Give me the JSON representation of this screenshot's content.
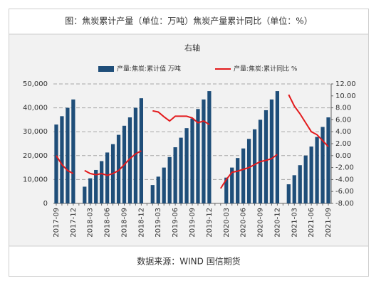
{
  "chart_data": {
    "type": "bar-line",
    "title": "图：焦炭累计产量（单位：万吨）焦炭产量累计同比（单位：%）",
    "subtitle": "右轴",
    "source": "数据来源：WIND 国信期货",
    "categories": [
      "2017-09",
      null,
      null,
      "2017-12",
      null,
      null,
      "2018-03",
      null,
      null,
      "2018-06",
      null,
      null,
      "2018-09",
      null,
      null,
      "2018-12",
      null,
      null,
      "2019-03",
      null,
      null,
      "2019-06",
      null,
      null,
      "2019-09",
      null,
      null,
      "2019-12",
      null,
      null,
      "2020-03",
      null,
      null,
      "2020-06",
      null,
      null,
      "2020-09",
      null,
      null,
      "2020-12",
      null,
      null,
      "2021-03",
      null,
      null,
      "2021-06",
      null,
      null,
      "2021-09"
    ],
    "series": [
      {
        "name": "产量:焦炭:累计值 万吨",
        "color": "#1f4e79",
        "kind": "bar",
        "values": [
          33000,
          36500,
          40000,
          43500,
          null,
          7000,
          10500,
          14000,
          17700,
          21300,
          24800,
          28700,
          32500,
          36000,
          40000,
          44000,
          null,
          7700,
          11200,
          15000,
          19400,
          23500,
          27500,
          31500,
          35500,
          39500,
          43500,
          47000,
          null,
          null,
          10800,
          15000,
          19000,
          23000,
          27000,
          31000,
          35000,
          39000,
          43500,
          47000,
          null,
          8000,
          11800,
          16000,
          20000,
          23800,
          27800,
          32000,
          36000
        ]
      },
      {
        "name": "产量:焦炭:累计同比 %",
        "color": "#e31a1c",
        "kind": "line",
        "axis": "y2",
        "values": [
          0.0,
          -1.5,
          -2.5,
          -3.0,
          null,
          -2.5,
          -3.0,
          -3.2,
          -3.0,
          -3.3,
          -3.0,
          -2.5,
          -1.5,
          -0.5,
          0.3,
          0.8,
          null,
          7.5,
          7.3,
          6.5,
          5.8,
          6.6,
          6.6,
          6.6,
          6.3,
          5.5,
          5.8,
          5.2,
          null,
          -5.5,
          -4.0,
          -2.8,
          -2.6,
          -2.3,
          -2.0,
          -1.5,
          -1.0,
          -0.8,
          -0.5,
          0.2,
          null,
          10.2,
          8.3,
          7.0,
          5.5,
          4.0,
          3.5,
          2.5,
          1.5
        ]
      }
    ],
    "ylim": [
      0,
      50000
    ],
    "yticks": [
      0,
      {
        "value": 10000,
        "label": "10,000"
      },
      {
        "value": 20000,
        "label": "20,000"
      },
      {
        "value": 30000,
        "label": "30,000"
      },
      {
        "value": 40000,
        "label": "40,000"
      },
      {
        "value": 50000,
        "label": "50,000"
      }
    ],
    "y2lim": [
      -8,
      12
    ],
    "y2ticks": [
      {
        "value": -8,
        "label": "-8.00"
      },
      {
        "value": -6,
        "label": "-6.00"
      },
      {
        "value": -4,
        "label": "-4.00"
      },
      {
        "value": -2,
        "label": "-2.00"
      },
      {
        "value": 0,
        "label": "0.00"
      },
      {
        "value": 2,
        "label": "2.00"
      },
      {
        "value": 4,
        "label": "4.00"
      },
      {
        "value": 6,
        "label": "6.00"
      },
      {
        "value": 8,
        "label": "8.00"
      },
      {
        "value": 10,
        "label": "10.00"
      },
      {
        "value": 12,
        "label": "12.00"
      }
    ],
    "grid": true
  }
}
